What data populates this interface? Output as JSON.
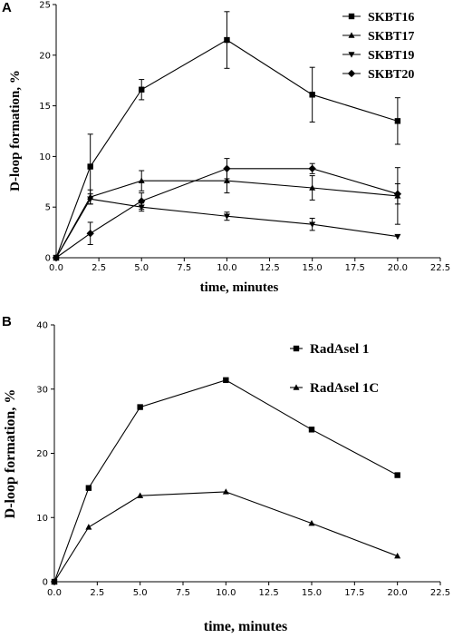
{
  "chart_data": [
    {
      "panel": "A",
      "type": "line",
      "xlabel": "time, minutes",
      "ylabel": "D-loop formation, %",
      "xlim": [
        0,
        22.5
      ],
      "ylim": [
        0,
        25
      ],
      "x_ticks": [
        "0.0",
        "2.5",
        "5.0",
        "7.5",
        "10.0",
        "12.5",
        "15.0",
        "17.5",
        "20.0",
        "22.5"
      ],
      "y_ticks": [
        "0",
        "5",
        "10",
        "15",
        "20",
        "25"
      ],
      "legend_position": "top-right",
      "series": [
        {
          "name": "SKBT16",
          "marker": "square",
          "x": [
            0,
            2,
            5,
            10,
            15,
            20
          ],
          "y": [
            0,
            9.0,
            16.6,
            21.5,
            16.1,
            13.5
          ],
          "err": [
            0,
            3.2,
            1.0,
            2.8,
            2.7,
            2.3
          ]
        },
        {
          "name": "SKBT17",
          "marker": "triangle-up",
          "x": [
            0,
            2,
            5,
            10,
            15,
            20
          ],
          "y": [
            0,
            6.0,
            7.6,
            7.6,
            6.9,
            6.1
          ],
          "err": [
            0,
            0.7,
            1.0,
            1.2,
            1.2,
            2.8
          ]
        },
        {
          "name": "SKBT19",
          "marker": "triangle-down",
          "x": [
            0,
            2,
            5,
            10,
            15,
            20
          ],
          "y": [
            0,
            5.8,
            5.0,
            4.1,
            3.3,
            2.1
          ],
          "err": [
            0,
            0.5,
            0.4,
            0.4,
            0.6,
            0.0
          ]
        },
        {
          "name": "SKBT20",
          "marker": "diamond",
          "x": [
            0,
            2,
            5,
            10,
            15,
            20
          ],
          "y": [
            0,
            2.4,
            5.6,
            8.8,
            8.8,
            6.3
          ],
          "err": [
            0,
            1.1,
            0.8,
            1.0,
            0.5,
            1.0
          ]
        }
      ]
    },
    {
      "panel": "B",
      "type": "line",
      "xlabel": "time, minutes",
      "ylabel": "D-loop formation, %",
      "xlim": [
        0,
        22.5
      ],
      "ylim": [
        0,
        40
      ],
      "x_ticks": [
        "0.0",
        "2.5",
        "5.0",
        "7.5",
        "10.0",
        "12.5",
        "15.0",
        "17.5",
        "20.0",
        "22.5"
      ],
      "y_ticks": [
        "0",
        "10",
        "20",
        "30",
        "40"
      ],
      "legend_position": "top-right",
      "series": [
        {
          "name": "RadAsel 1",
          "marker": "square",
          "x": [
            0,
            2,
            5,
            10,
            15,
            20
          ],
          "y": [
            0,
            14.6,
            27.2,
            31.4,
            23.7,
            16.6
          ]
        },
        {
          "name": "RadAsel 1C",
          "marker": "triangle-up",
          "x": [
            0,
            2,
            5,
            10,
            15,
            20
          ],
          "y": [
            0,
            8.5,
            13.4,
            14.0,
            9.1,
            4.0
          ]
        }
      ]
    }
  ]
}
